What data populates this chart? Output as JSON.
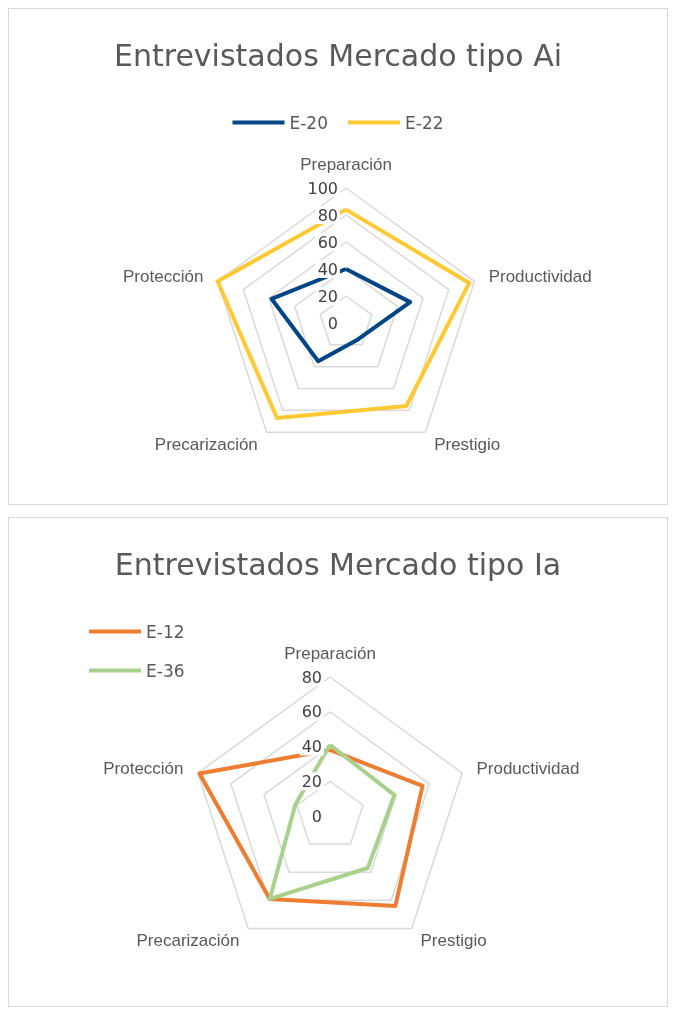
{
  "chart_data": [
    {
      "type": "radar",
      "title": "Entrevistados Mercado tipo Ai",
      "categories": [
        "Preparación",
        "Productividad",
        "Prestigio",
        "Precarización",
        "Protección"
      ],
      "ylim": [
        0,
        100
      ],
      "yticks": [
        0,
        20,
        40,
        60,
        80,
        100
      ],
      "legend": "top",
      "grid": true,
      "marker": "none",
      "series": [
        {
          "name": "E-20",
          "color": "#004586",
          "values": [
            40,
            50,
            15,
            35,
            58
          ]
        },
        {
          "name": "E-22",
          "color": "#ffc934",
          "values": [
            84,
            96,
            76,
            87,
            100
          ]
        }
      ]
    },
    {
      "type": "radar",
      "title": "Entrevistados Mercado tipo Ia",
      "categories": [
        "Preparación",
        "Productividad",
        "Prestigio",
        "Precarización",
        "Protección"
      ],
      "ylim": [
        0,
        80
      ],
      "yticks": [
        0,
        20,
        40,
        60,
        80
      ],
      "legend": "top left",
      "grid": true,
      "marker": "none",
      "series": [
        {
          "name": "E-12",
          "color": "#ed7d31",
          "values": [
            38,
            56,
            64,
            59,
            79
          ]
        },
        {
          "name": "E-36",
          "color": "#a9d18e",
          "values": [
            41,
            39,
            37,
            59,
            21
          ]
        }
      ]
    }
  ]
}
